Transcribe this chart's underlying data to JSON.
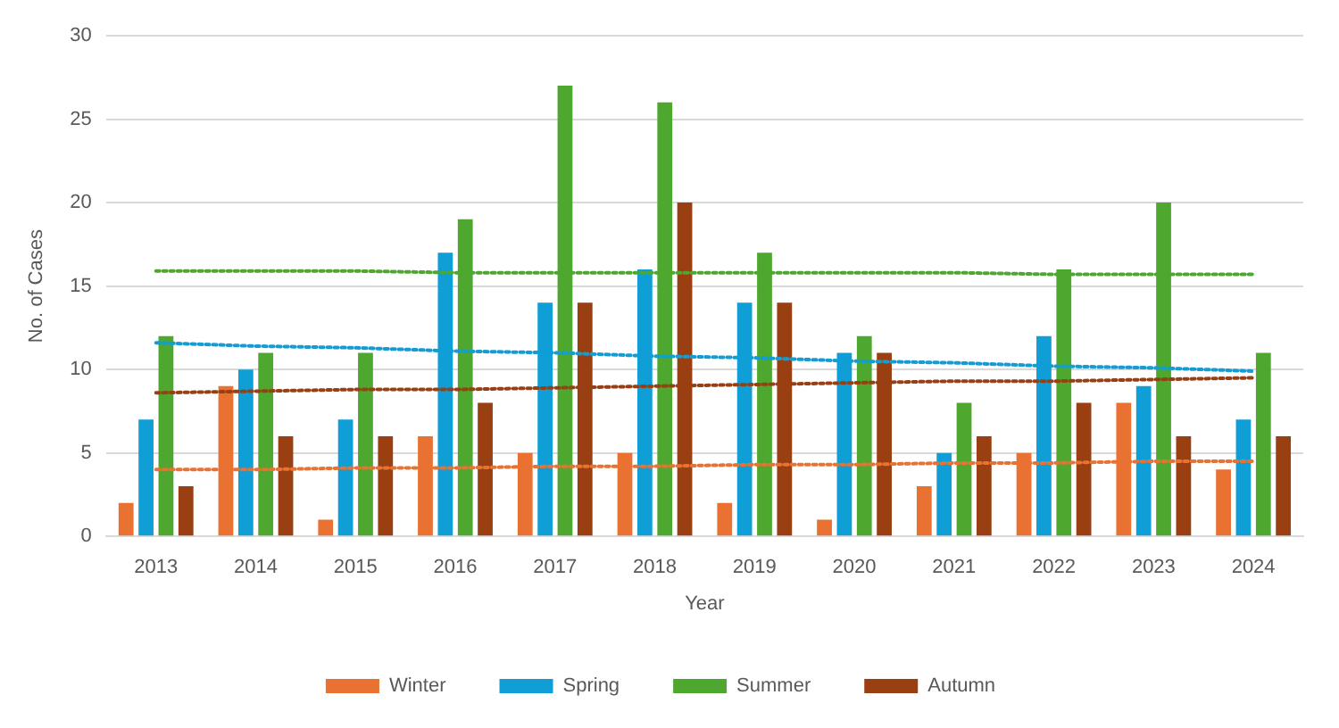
{
  "chart_data": {
    "type": "bar",
    "xlabel": "Year",
    "ylabel": "No. of Cases",
    "categories": [
      "2013",
      "2014",
      "2015",
      "2016",
      "2017",
      "2018",
      "2019",
      "2020",
      "2021",
      "2022",
      "2023",
      "2024"
    ],
    "series": [
      {
        "name": "Winter",
        "color": "#e97132",
        "values": [
          2,
          9,
          1,
          6,
          5,
          5,
          2,
          1,
          3,
          5,
          8,
          4
        ]
      },
      {
        "name": "Spring",
        "color": "#0f9ed5",
        "values": [
          7,
          10,
          7,
          17,
          14,
          16,
          14,
          11,
          5,
          12,
          9,
          7
        ]
      },
      {
        "name": "Summer",
        "color": "#4ea72e",
        "values": [
          12,
          11,
          11,
          19,
          27,
          26,
          17,
          12,
          8,
          16,
          20,
          11
        ]
      },
      {
        "name": "Autumn",
        "color": "#993f12",
        "values": [
          3,
          6,
          6,
          8,
          14,
          20,
          14,
          11,
          6,
          8,
          6,
          6
        ]
      },
      {
        "type": "line",
        "color": "#e97132",
        "line_style": "dotted",
        "marker": "none",
        "values": [
          4.0,
          4.0,
          4.1,
          4.1,
          4.2,
          4.2,
          4.3,
          4.3,
          4.4,
          4.4,
          4.5,
          4.5
        ]
      },
      {
        "type": "line",
        "color": "#0f9ed5",
        "line_style": "dotted",
        "marker": "none",
        "values": [
          11.6,
          11.4,
          11.3,
          11.1,
          11.0,
          10.8,
          10.7,
          10.5,
          10.4,
          10.2,
          10.1,
          9.9
        ]
      },
      {
        "type": "line",
        "color": "#4ea72e",
        "line_style": "dotted",
        "marker": "none",
        "values": [
          15.9,
          15.9,
          15.9,
          15.8,
          15.8,
          15.8,
          15.8,
          15.8,
          15.8,
          15.7,
          15.7,
          15.7
        ]
      },
      {
        "type": "line",
        "color": "#993f12",
        "line_style": "dotted",
        "marker": "none",
        "values": [
          8.6,
          8.7,
          8.8,
          8.8,
          8.9,
          9.0,
          9.1,
          9.2,
          9.3,
          9.3,
          9.4,
          9.5
        ]
      }
    ],
    "ylim": [
      0,
      30
    ],
    "yticks": [
      0,
      5,
      10,
      15,
      20,
      25,
      30
    ],
    "grid": "y",
    "legend": "bottom"
  }
}
